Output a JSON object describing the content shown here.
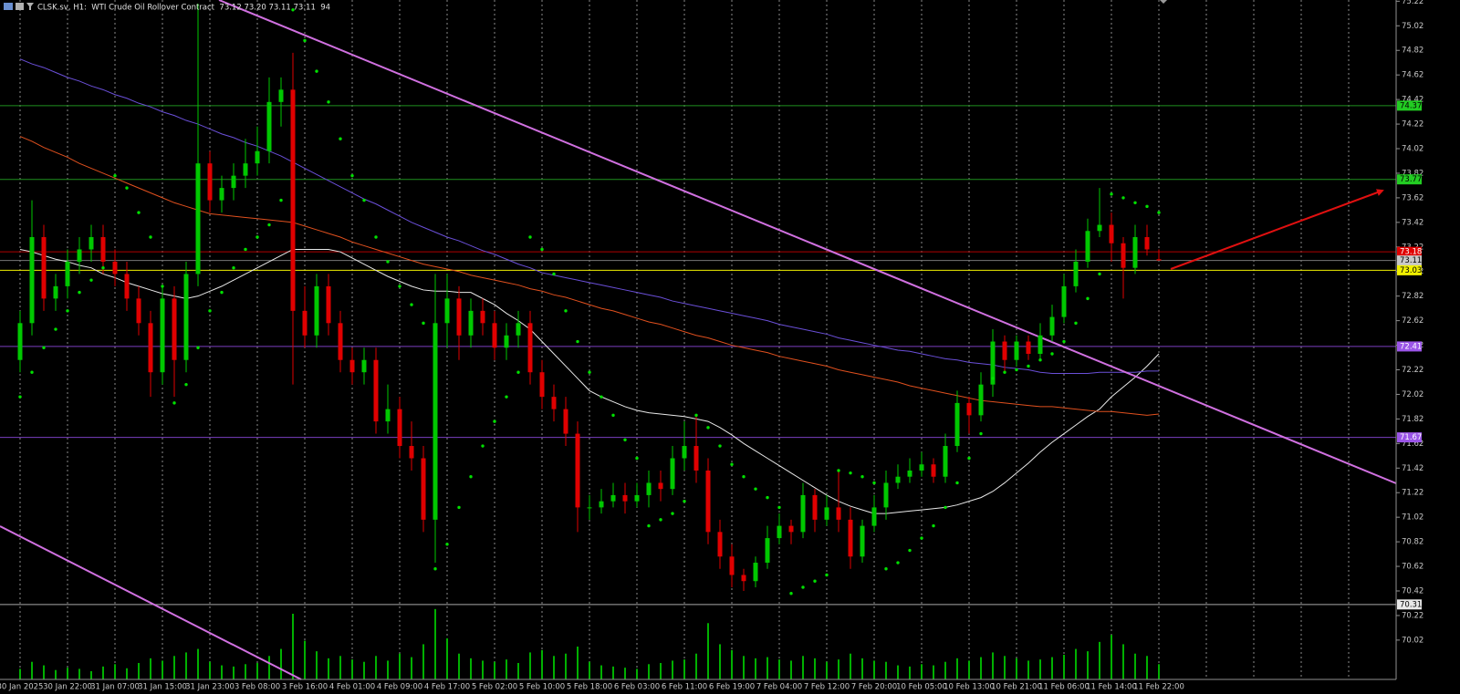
{
  "chart_data": {
    "type": "candlestick",
    "title": "CLSK.sv, H1:  WTI Crude Oil Rollover Contract  73.12 73.20 73.11 73.11  94",
    "categories": [
      "30 Jan 2025",
      null,
      null,
      null,
      "30 Jan 22:00",
      null,
      null,
      null,
      "31 Jan 07:00",
      null,
      null,
      null,
      "31 Jan 15:00",
      null,
      null,
      null,
      "31 Jan 23:00",
      null,
      null,
      null,
      "3 Feb 08:00",
      null,
      null,
      null,
      "3 Feb 16:00",
      null,
      null,
      null,
      "4 Feb 01:00",
      null,
      null,
      null,
      "4 Feb 09:00",
      null,
      null,
      null,
      "4 Feb 17:00",
      null,
      null,
      null,
      "5 Feb 02:00",
      null,
      null,
      null,
      "5 Feb 10:00",
      null,
      null,
      null,
      "5 Feb 18:00",
      null,
      null,
      null,
      "6 Feb 03:00",
      null,
      null,
      null,
      "6 Feb 11:00",
      null,
      null,
      null,
      "6 Feb 19:00",
      null,
      null,
      null,
      "7 Feb 04:00",
      null,
      null,
      null,
      "7 Feb 12:00",
      null,
      null,
      null,
      "7 Feb 20:00",
      null,
      null,
      null,
      "10 Feb 05:00",
      null,
      null,
      null,
      "10 Feb 13:00",
      null,
      null,
      null,
      "10 Feb 21:00",
      null,
      null,
      null,
      "11 Feb 06:00",
      null,
      null,
      null,
      "11 Feb 14:00",
      null,
      null,
      null,
      "11 Feb 22:00"
    ],
    "ohlc": [
      [
        72.3,
        72.7,
        72.2,
        72.6
      ],
      [
        72.6,
        73.6,
        72.5,
        73.3
      ],
      [
        73.3,
        73.4,
        72.7,
        72.8
      ],
      [
        72.8,
        73.0,
        72.7,
        72.9
      ],
      [
        72.9,
        73.2,
        72.8,
        73.1
      ],
      [
        73.1,
        73.3,
        73.0,
        73.2
      ],
      [
        73.2,
        73.4,
        73.1,
        73.3
      ],
      [
        73.3,
        73.4,
        73.0,
        73.1
      ],
      [
        73.1,
        73.2,
        72.9,
        73.0
      ],
      [
        73.0,
        73.1,
        72.7,
        72.8
      ],
      [
        72.8,
        72.9,
        72.5,
        72.6
      ],
      [
        72.6,
        72.7,
        72.0,
        72.2
      ],
      [
        72.2,
        72.9,
        72.1,
        72.8
      ],
      [
        72.8,
        72.9,
        72.0,
        72.3
      ],
      [
        72.3,
        73.1,
        72.2,
        73.0
      ],
      [
        73.0,
        75.2,
        72.9,
        73.9
      ],
      [
        73.9,
        74.0,
        73.5,
        73.6
      ],
      [
        73.6,
        73.8,
        73.5,
        73.7
      ],
      [
        73.7,
        73.9,
        73.6,
        73.8
      ],
      [
        73.8,
        74.1,
        73.7,
        73.9
      ],
      [
        73.9,
        74.2,
        73.8,
        74.0
      ],
      [
        74.0,
        74.6,
        73.9,
        74.4
      ],
      [
        74.4,
        74.6,
        74.2,
        74.5
      ],
      [
        74.5,
        74.8,
        72.1,
        72.7
      ],
      [
        72.7,
        72.9,
        72.4,
        72.5
      ],
      [
        72.5,
        73.0,
        72.4,
        72.9
      ],
      [
        72.9,
        73.0,
        72.5,
        72.6
      ],
      [
        72.6,
        72.7,
        72.2,
        72.3
      ],
      [
        72.3,
        72.4,
        72.1,
        72.2
      ],
      [
        72.2,
        72.4,
        72.1,
        72.3
      ],
      [
        72.3,
        72.4,
        71.7,
        71.8
      ],
      [
        71.8,
        72.1,
        71.7,
        71.9
      ],
      [
        71.9,
        72.0,
        71.5,
        71.6
      ],
      [
        71.6,
        71.8,
        71.4,
        71.5
      ],
      [
        71.5,
        71.6,
        70.9,
        71.0
      ],
      [
        71.0,
        73.0,
        70.65,
        72.6
      ],
      [
        72.6,
        73.0,
        72.4,
        72.8
      ],
      [
        72.8,
        72.9,
        72.3,
        72.5
      ],
      [
        72.5,
        72.8,
        72.4,
        72.7
      ],
      [
        72.7,
        72.8,
        72.5,
        72.6
      ],
      [
        72.6,
        72.7,
        72.3,
        72.4
      ],
      [
        72.4,
        72.6,
        72.3,
        72.5
      ],
      [
        72.5,
        72.7,
        72.4,
        72.6
      ],
      [
        72.6,
        72.7,
        72.1,
        72.2
      ],
      [
        72.2,
        72.3,
        71.9,
        72.0
      ],
      [
        72.0,
        72.1,
        71.8,
        71.9
      ],
      [
        71.9,
        72.0,
        71.6,
        71.7
      ],
      [
        71.7,
        71.8,
        70.9,
        71.1
      ],
      [
        71.1,
        71.2,
        71.0,
        71.1
      ],
      [
        71.1,
        71.25,
        71.05,
        71.15
      ],
      [
        71.15,
        71.3,
        71.1,
        71.2
      ],
      [
        71.2,
        71.3,
        71.05,
        71.15
      ],
      [
        71.15,
        71.3,
        71.1,
        71.2
      ],
      [
        71.2,
        71.4,
        71.1,
        71.3
      ],
      [
        71.3,
        71.4,
        71.15,
        71.25
      ],
      [
        71.25,
        71.6,
        71.2,
        71.5
      ],
      [
        71.5,
        71.8,
        71.4,
        71.6
      ],
      [
        71.6,
        71.85,
        71.3,
        71.4
      ],
      [
        71.4,
        71.5,
        70.8,
        70.9
      ],
      [
        70.9,
        71.0,
        70.6,
        70.7
      ],
      [
        70.7,
        70.8,
        70.45,
        70.55
      ],
      [
        70.55,
        70.6,
        70.42,
        70.5
      ],
      [
        70.5,
        70.7,
        70.45,
        70.65
      ],
      [
        70.65,
        70.95,
        70.6,
        70.85
      ],
      [
        70.85,
        71.05,
        70.8,
        70.95
      ],
      [
        70.95,
        71.0,
        70.8,
        70.9
      ],
      [
        70.9,
        71.3,
        70.85,
        71.2
      ],
      [
        71.2,
        71.25,
        70.9,
        71.0
      ],
      [
        71.0,
        71.2,
        70.95,
        71.1
      ],
      [
        71.1,
        71.4,
        70.9,
        71.0
      ],
      [
        71.0,
        71.1,
        70.6,
        70.7
      ],
      [
        70.7,
        71.0,
        70.65,
        70.95
      ],
      [
        70.95,
        71.2,
        70.9,
        71.1
      ],
      [
        71.1,
        71.4,
        71.0,
        71.3
      ],
      [
        71.3,
        71.45,
        71.25,
        71.35
      ],
      [
        71.35,
        71.5,
        71.3,
        71.4
      ],
      [
        71.4,
        71.55,
        71.35,
        71.45
      ],
      [
        71.45,
        71.5,
        71.3,
        71.35
      ],
      [
        71.35,
        71.7,
        71.3,
        71.6
      ],
      [
        71.6,
        72.05,
        71.55,
        71.95
      ],
      [
        71.95,
        72.0,
        71.7,
        71.85
      ],
      [
        71.85,
        72.2,
        71.8,
        72.1
      ],
      [
        72.1,
        72.55,
        72.0,
        72.45
      ],
      [
        72.45,
        72.5,
        72.2,
        72.3
      ],
      [
        72.3,
        72.5,
        72.25,
        72.45
      ],
      [
        72.45,
        72.5,
        72.3,
        72.35
      ],
      [
        72.35,
        72.6,
        72.3,
        72.5
      ],
      [
        72.5,
        72.75,
        72.45,
        72.65
      ],
      [
        72.65,
        73.0,
        72.6,
        72.9
      ],
      [
        72.9,
        73.2,
        72.85,
        73.1
      ],
      [
        73.1,
        73.45,
        73.05,
        73.35
      ],
      [
        73.35,
        73.7,
        73.3,
        73.4
      ],
      [
        73.4,
        73.5,
        73.1,
        73.25
      ],
      [
        73.25,
        73.3,
        72.8,
        73.05
      ],
      [
        73.05,
        73.4,
        73.0,
        73.3
      ],
      [
        73.3,
        73.4,
        73.15,
        73.2
      ],
      [
        73.12,
        73.2,
        73.11,
        73.11
      ]
    ],
    "up_color": "#00c800",
    "down_color": "#e00000",
    "ylim": [
      69.7,
      75.23
    ],
    "yticks": [
      75.22,
      75.02,
      74.82,
      74.62,
      74.42,
      74.22,
      74.02,
      73.82,
      73.62,
      73.42,
      73.22,
      73.02,
      72.82,
      72.62,
      72.42,
      72.22,
      72.02,
      71.82,
      71.62,
      71.42,
      71.22,
      71.02,
      70.82,
      70.62,
      70.42,
      70.22,
      70.02
    ],
    "grid": true,
    "overlays": [
      {
        "color": "#e8e8e8",
        "values": [
          73.2,
          73.18,
          73.15,
          73.12,
          73.1,
          73.07,
          73.05,
          73.0,
          72.97,
          72.93,
          72.9,
          72.87,
          72.84,
          72.82,
          72.8,
          72.82,
          72.86,
          72.9,
          72.95,
          73.0,
          73.05,
          73.1,
          73.15,
          73.2,
          73.2,
          73.2,
          73.2,
          73.18,
          73.13,
          73.08,
          73.03,
          72.98,
          72.94,
          72.9,
          72.87,
          72.86,
          72.86,
          72.85,
          72.85,
          72.8,
          72.75,
          72.68,
          72.62,
          72.55,
          72.45,
          72.35,
          72.25,
          72.15,
          72.05,
          72.0,
          71.96,
          71.92,
          71.89,
          71.87,
          71.86,
          71.85,
          71.84,
          71.82,
          71.8,
          71.75,
          71.69,
          71.62,
          71.56,
          71.5,
          71.44,
          71.38,
          71.32,
          71.26,
          71.2,
          71.15,
          71.11,
          71.08,
          71.05,
          71.05,
          71.06,
          71.07,
          71.08,
          71.09,
          71.1,
          71.12,
          71.15,
          71.18,
          71.23,
          71.3,
          71.38,
          71.46,
          71.55,
          71.63,
          71.7,
          71.77,
          71.84,
          71.9,
          72.0,
          72.08,
          72.16,
          72.25,
          72.35
        ]
      },
      {
        "color": "#6a4fd8",
        "values": [
          74.75,
          74.71,
          74.68,
          74.64,
          74.6,
          74.57,
          74.53,
          74.5,
          74.46,
          74.43,
          74.39,
          74.36,
          74.32,
          74.29,
          74.25,
          74.22,
          74.18,
          74.14,
          74.11,
          74.07,
          74.04,
          74.0,
          73.96,
          73.91,
          73.86,
          73.81,
          73.76,
          73.71,
          73.66,
          73.61,
          73.57,
          73.52,
          73.47,
          73.42,
          73.38,
          73.34,
          73.3,
          73.27,
          73.23,
          73.19,
          73.16,
          73.12,
          73.08,
          73.05,
          73.01,
          72.99,
          72.97,
          72.95,
          72.93,
          72.91,
          72.89,
          72.87,
          72.85,
          72.83,
          72.81,
          72.78,
          72.76,
          72.74,
          72.72,
          72.7,
          72.68,
          72.66,
          72.64,
          72.62,
          72.59,
          72.57,
          72.55,
          72.53,
          72.51,
          72.48,
          72.46,
          72.44,
          72.42,
          72.4,
          72.38,
          72.37,
          72.35,
          72.33,
          72.31,
          72.3,
          72.28,
          72.27,
          72.26,
          72.24,
          72.23,
          72.22,
          72.2,
          72.19,
          72.19,
          72.19,
          72.19,
          72.2,
          72.2,
          72.2,
          72.2,
          72.21,
          72.21
        ]
      },
      {
        "color": "#e0501e",
        "values": [
          74.12,
          74.08,
          74.03,
          73.99,
          73.95,
          73.9,
          73.86,
          73.82,
          73.78,
          73.74,
          73.7,
          73.66,
          73.62,
          73.58,
          73.55,
          73.52,
          73.49,
          73.48,
          73.47,
          73.46,
          73.45,
          73.44,
          73.43,
          73.42,
          73.39,
          73.36,
          73.33,
          73.3,
          73.26,
          73.23,
          73.2,
          73.17,
          73.14,
          73.11,
          73.08,
          73.06,
          73.04,
          73.02,
          72.99,
          72.97,
          72.95,
          72.93,
          72.91,
          72.88,
          72.86,
          72.83,
          72.81,
          72.78,
          72.75,
          72.72,
          72.7,
          72.67,
          72.64,
          72.61,
          72.59,
          72.56,
          72.53,
          72.5,
          72.48,
          72.45,
          72.42,
          72.4,
          72.38,
          72.36,
          72.33,
          72.31,
          72.29,
          72.27,
          72.25,
          72.22,
          72.2,
          72.18,
          72.16,
          72.14,
          72.12,
          72.09,
          72.07,
          72.05,
          72.03,
          72.01,
          71.99,
          71.97,
          71.96,
          71.95,
          71.94,
          71.93,
          71.92,
          71.92,
          71.91,
          71.9,
          71.89,
          71.88,
          71.88,
          71.87,
          71.86,
          71.85,
          71.86
        ]
      }
    ],
    "sar": {
      "color": "#00e000",
      "values": [
        72.0,
        72.2,
        72.4,
        72.55,
        72.7,
        72.85,
        72.95,
        73.05,
        73.8,
        73.7,
        73.5,
        73.3,
        72.9,
        71.95,
        72.1,
        72.4,
        72.7,
        72.85,
        73.05,
        73.2,
        73.3,
        73.4,
        73.6,
        75.15,
        74.9,
        74.65,
        74.4,
        74.1,
        73.8,
        73.6,
        73.3,
        73.1,
        72.9,
        72.75,
        72.6,
        70.6,
        70.8,
        71.1,
        71.35,
        71.6,
        71.8,
        72.0,
        72.2,
        73.3,
        73.2,
        73.0,
        72.7,
        72.45,
        72.2,
        72.0,
        71.85,
        71.65,
        71.5,
        70.95,
        71.0,
        71.05,
        71.15,
        71.85,
        71.75,
        71.6,
        71.45,
        71.35,
        71.25,
        71.18,
        71.1,
        70.4,
        70.45,
        70.5,
        70.55,
        71.4,
        71.38,
        71.35,
        71.3,
        70.6,
        70.65,
        70.75,
        70.85,
        70.95,
        71.1,
        71.3,
        71.5,
        71.7,
        72.15,
        72.2,
        72.22,
        72.25,
        72.3,
        72.35,
        72.45,
        72.6,
        72.8,
        73.0,
        73.65,
        73.62,
        73.58,
        73.55,
        73.5
      ]
    },
    "volume": {
      "color": "#00b000",
      "ylim": [
        0,
        700
      ],
      "values": [
        90,
        150,
        120,
        80,
        100,
        90,
        70,
        110,
        130,
        95,
        140,
        180,
        160,
        200,
        230,
        260,
        150,
        120,
        110,
        130,
        140,
        200,
        260,
        560,
        330,
        240,
        180,
        200,
        170,
        150,
        200,
        160,
        220,
        190,
        300,
        600,
        350,
        220,
        180,
        160,
        150,
        170,
        140,
        230,
        250,
        200,
        220,
        280,
        150,
        120,
        110,
        100,
        90,
        130,
        140,
        160,
        170,
        220,
        480,
        300,
        250,
        200,
        180,
        190,
        170,
        160,
        200,
        180,
        150,
        170,
        220,
        180,
        160,
        150,
        120,
        110,
        130,
        120,
        150,
        180,
        160,
        190,
        230,
        200,
        180,
        160,
        170,
        190,
        210,
        260,
        240,
        320,
        380,
        300,
        220,
        200,
        130
      ]
    },
    "price_lines": [
      {
        "value": 74.37,
        "color": "#1f8f1f",
        "label_color": "#22cc22",
        "text_color": "#000000"
      },
      {
        "value": 73.77,
        "color": "#1f8f1f",
        "label_color": "#22cc22",
        "text_color": "#000000"
      },
      {
        "value": 73.18,
        "color": "#b00000",
        "label_color": "#e00000",
        "text_color": "#ffffff"
      },
      {
        "value": 73.11,
        "color": "#777777",
        "label_color": "#c8c8c8",
        "text_color": "#000000"
      },
      {
        "value": 73.03,
        "color": "#f0f000",
        "label_color": "#f0f000",
        "text_color": "#000000"
      },
      {
        "value": 72.41,
        "color": "#7a3fc0",
        "label_color": "#9b55e8",
        "text_color": "#ffffff"
      },
      {
        "value": 71.67,
        "color": "#7a3fc0",
        "label_color": "#9b55e8",
        "text_color": "#ffffff"
      },
      {
        "value": 70.31,
        "color": "#a8a8a8",
        "label_color": "#e8e8e8",
        "text_color": "#000000"
      }
    ]
  }
}
